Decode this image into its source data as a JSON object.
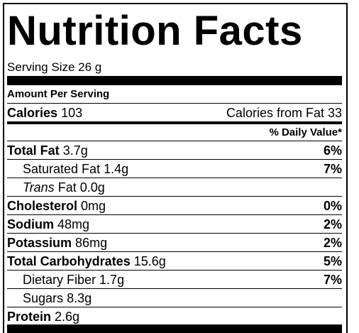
{
  "title": "Nutrition Facts",
  "serving_size": "Serving Size 26 g",
  "amount_per_serving": "Amount Per Serving",
  "calories": {
    "label": "Calories",
    "amount": "103"
  },
  "calories_from_fat": "Calories from Fat 33",
  "daily_value_header": "% Daily Value*",
  "rows": [
    {
      "label": "Total Fat",
      "amount": "3.7g",
      "dv": "6%",
      "bold": true
    },
    {
      "label": "Saturated Fat",
      "amount": "1.4g",
      "dv": "7%",
      "bold": false
    },
    {
      "label_italic": "Trans",
      "label": "Fat",
      "amount": "0.0g",
      "bold": false
    },
    {
      "label": "Cholesterol",
      "amount": "0mg",
      "dv": "0%",
      "bold": true
    },
    {
      "label": "Sodium",
      "amount": "48mg",
      "dv": "2%",
      "bold": true
    },
    {
      "label": "Potassium",
      "amount": "86mg",
      "dv": "2%",
      "bold": true
    },
    {
      "label": "Total Carbohydrates",
      "amount": "15.6g",
      "dv": "5%",
      "bold": true
    },
    {
      "label": "Dietary Fiber",
      "amount": "1.7g",
      "dv": "7%",
      "bold": false
    },
    {
      "label": "Sugars",
      "amount": "8.3g",
      "bold": false
    },
    {
      "label": "Protein",
      "amount": "2.6g",
      "bold": true
    }
  ]
}
